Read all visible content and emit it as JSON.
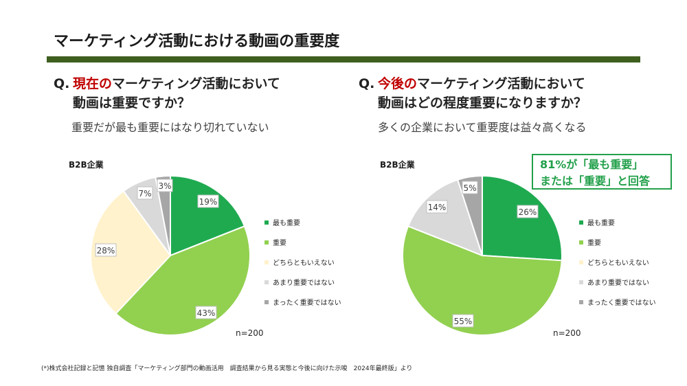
{
  "title": "マーケティング活動における動画の重要度",
  "left": {
    "q_prefix": "Q.",
    "q_hl": "現在の",
    "q_rest1": "マーケティング活動において",
    "q_line2": "動画は重要ですか？",
    "subtitle": "重要だが最も重要にはなり切れていない"
  },
  "right": {
    "q_prefix": "Q.",
    "q_hl": "今後の",
    "q_rest1": "マーケティング活動において",
    "q_line2": "動画はどの程度重要になりますか？",
    "subtitle": "多くの企業において重要度は益々高くなる",
    "callout_line1": "81%が「最も重要」",
    "callout_line2": "または「重要」と回答"
  },
  "colors": {
    "most_important": "#1faa50",
    "important": "#92d050",
    "neutral": "#fff2cc",
    "not_very": "#d9d9d9",
    "not_at_all": "#a6a6a6",
    "accent_red": "#c00000",
    "bar": "#3f5f1f"
  },
  "footnote": "(*)株式会社記録と記憶 独自調査「マーケティング部門の動画活用　調査結果から見る実態と今後に向けた示唆　2024年最終版」より",
  "chart_data": [
    {
      "type": "pie",
      "title": "B2B企業",
      "categories": [
        "最も重要",
        "重要",
        "どちらともいえない",
        "あまり重要ではない",
        "まったく重要ではない"
      ],
      "values": [
        19,
        43,
        28,
        7,
        3
      ],
      "labels": [
        "19%",
        "43%",
        "28%",
        "7%",
        "3%"
      ],
      "note": "n=200",
      "legend_position": "right"
    },
    {
      "type": "pie",
      "title": "B2B企業",
      "categories": [
        "最も重要",
        "重要",
        "どちらともいえない",
        "あまり重要ではない",
        "まったく重要ではない"
      ],
      "values": [
        26,
        55,
        0,
        14,
        5
      ],
      "labels": [
        "26%",
        "55%",
        "",
        "14%",
        "5%"
      ],
      "note": "n=200",
      "legend_position": "right"
    }
  ]
}
